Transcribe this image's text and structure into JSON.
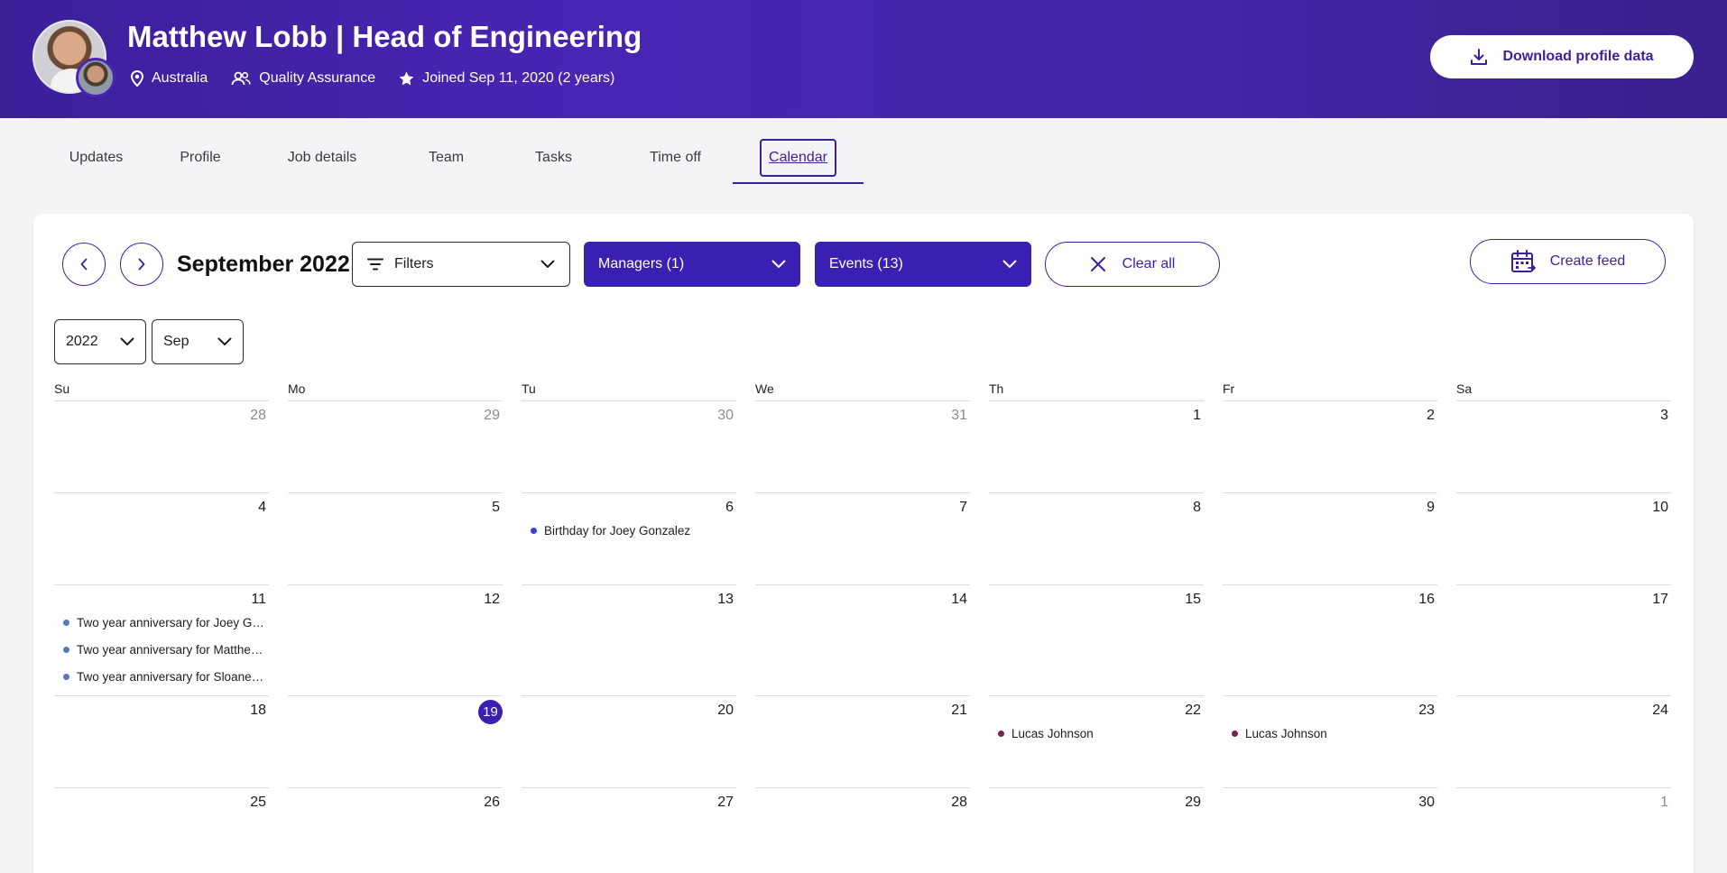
{
  "profile": {
    "name": "Matthew Lobb | Head of Engineering",
    "location": "Australia",
    "department": "Quality Assurance",
    "joined": "Joined Sep 11, 2020 (2 years)",
    "download_label": "Download profile data"
  },
  "tabs": [
    "Updates",
    "Profile",
    "Job details",
    "Team",
    "Tasks",
    "Time off",
    "Calendar"
  ],
  "active_tab": "Calendar",
  "toolbar": {
    "month_title": "September 2022",
    "filters_label": "Filters",
    "managers_label": "Managers (1)",
    "events_label": "Events (13)",
    "clear_label": "Clear all",
    "create_feed_label": "Create feed",
    "year_value": "2022",
    "month_value": "Sep"
  },
  "weekdays": [
    "Su",
    "Mo",
    "Tu",
    "We",
    "Th",
    "Fr",
    "Sa"
  ],
  "weeks": [
    [
      "28",
      "29",
      "30",
      "31",
      "1",
      "2",
      "3"
    ],
    [
      "4",
      "5",
      "6",
      "7",
      "8",
      "9",
      "10"
    ],
    [
      "11",
      "12",
      "13",
      "14",
      "15",
      "16",
      "17"
    ],
    [
      "18",
      "19",
      "20",
      "21",
      "22",
      "23",
      "24"
    ],
    [
      "25",
      "26",
      "27",
      "28",
      "29",
      "30",
      "1"
    ]
  ],
  "today": "19",
  "events": {
    "birthday_joey": "Birthday for Joey Gonzalez",
    "anniv_joey": "Two year anniversary for Joey Gonzalez",
    "anniv_matthew": "Two year anniversary for Matthew Lobb",
    "anniv_sloane": "Two year anniversary for Sloane Davis",
    "lucas_22": "Lucas Johnson",
    "lucas_23": "Lucas Johnson"
  },
  "colors": {
    "brand": "#3a1fb3",
    "birthday_dot": "#3a3fd0",
    "anniversary_dot": "#5a78b8",
    "timeoff_dot": "#7a1f52"
  }
}
